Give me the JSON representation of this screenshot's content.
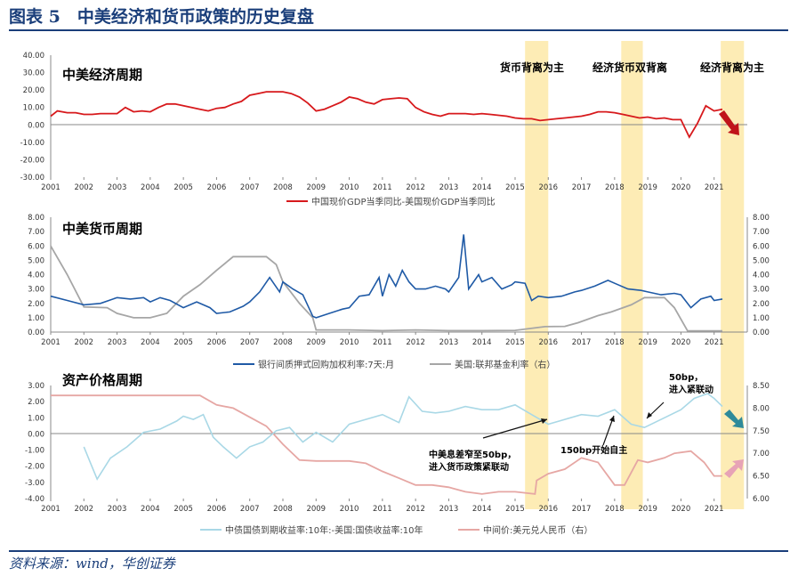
{
  "figure": {
    "title": "图表 5　中美经济和货币政策的历史复盘",
    "source": "资料来源：wind，华创证券"
  },
  "colors": {
    "red": "#d7191c",
    "blue": "#1f5aa6",
    "gray": "#a6a6a6",
    "light_blue": "#a9d8e6",
    "pink": "#e6a7a4",
    "highlight": "#fde9a8",
    "title_blue": "#1a3e7a"
  },
  "x_tick_labels": [
    "2001",
    "2002",
    "2003",
    "2004",
    "2005",
    "2006",
    "2007",
    "2008",
    "2009",
    "2010",
    "2011",
    "2012",
    "2013",
    "2014",
    "2015",
    "2016",
    "2017",
    "2018",
    "2019",
    "2020",
    "2021"
  ],
  "highlights": [
    {
      "x0": 2015.3,
      "x1": 2016.0
    },
    {
      "x0": 2018.2,
      "x1": 2018.85
    },
    {
      "x0": 2021.2,
      "x1": 2021.9
    }
  ],
  "chart_data": [
    {
      "type": "line",
      "title": "中美经济周期",
      "xlim": [
        2001,
        2022
      ],
      "ylim": [
        -30,
        40
      ],
      "yticks": [
        "40.00",
        "30.00",
        "20.00",
        "10.00",
        "0.00",
        "-10.00",
        "-20.00",
        "-30.00"
      ],
      "annotations": [
        "货币背离为主",
        "经济货币双背离",
        "经济背离为主"
      ],
      "series": [
        {
          "name": "中国现价GDP当季同比-美国现价GDP当季同比",
          "x": [
            2001.0,
            2001.2,
            2001.5,
            2001.75,
            2002.0,
            2002.25,
            2002.5,
            2002.75,
            2003.0,
            2003.25,
            2003.5,
            2003.75,
            2004.0,
            2004.25,
            2004.5,
            2004.75,
            2005.0,
            2005.25,
            2005.5,
            2005.75,
            2006.0,
            2006.25,
            2006.5,
            2006.75,
            2007.0,
            2007.25,
            2007.5,
            2007.75,
            2008.0,
            2008.25,
            2008.5,
            2008.75,
            2009.0,
            2009.25,
            2009.5,
            2009.75,
            2010.0,
            2010.25,
            2010.5,
            2010.75,
            2011.0,
            2011.25,
            2011.5,
            2011.75,
            2012.0,
            2012.25,
            2012.5,
            2012.75,
            2013.0,
            2013.25,
            2013.5,
            2013.75,
            2014.0,
            2014.25,
            2014.5,
            2014.75,
            2015.0,
            2015.25,
            2015.5,
            2015.75,
            2016.0,
            2016.25,
            2016.5,
            2016.75,
            2017.0,
            2017.25,
            2017.5,
            2017.75,
            2018.0,
            2018.25,
            2018.5,
            2018.75,
            2019.0,
            2019.25,
            2019.5,
            2019.75,
            2020.0,
            2020.25,
            2020.5,
            2020.75,
            2021.0,
            2021.25
          ],
          "values": [
            5,
            8,
            7,
            7,
            6,
            6,
            6.5,
            6.5,
            6.5,
            10,
            7.5,
            8,
            7.5,
            10,
            12,
            12,
            11,
            10,
            9,
            8,
            9.5,
            10,
            12,
            13.5,
            17,
            18,
            19,
            19,
            19,
            18,
            16,
            12.5,
            8,
            9,
            11,
            13,
            16,
            15,
            13,
            12,
            14.5,
            15,
            15.5,
            15,
            10,
            7.5,
            6,
            5,
            6.5,
            6.5,
            6.5,
            6,
            6.5,
            6,
            5.5,
            5,
            4,
            3.5,
            3.5,
            2.5,
            3,
            3.5,
            4,
            4.5,
            5,
            6,
            7.5,
            7.5,
            7,
            6,
            5,
            4,
            4.5,
            3.5,
            4,
            3,
            3,
            -7,
            1,
            11,
            8,
            9
          ]
        }
      ]
    },
    {
      "type": "line",
      "title": "中美货币周期",
      "xlim": [
        2001,
        2022
      ],
      "ylim": [
        0,
        8
      ],
      "yticks": [
        "8.00",
        "7.00",
        "6.00",
        "5.00",
        "4.00",
        "3.00",
        "2.00",
        "1.00",
        "0.00"
      ],
      "series": [
        {
          "name": "银行间质押式回购加权利率:7天:月",
          "axis": "left",
          "x": [
            2001.0,
            2001.5,
            2002.0,
            2002.5,
            2003.0,
            2003.4,
            2003.8,
            2004.0,
            2004.3,
            2004.6,
            2005.0,
            2005.4,
            2005.8,
            2006.0,
            2006.4,
            2006.8,
            2007.0,
            2007.3,
            2007.6,
            2007.9,
            2008.0,
            2008.3,
            2008.6,
            2008.9,
            2009.0,
            2009.4,
            2009.8,
            2010.0,
            2010.3,
            2010.6,
            2010.9,
            2011.0,
            2011.2,
            2011.4,
            2011.6,
            2011.8,
            2012.0,
            2012.3,
            2012.6,
            2012.9,
            2013.0,
            2013.3,
            2013.45,
            2013.6,
            2013.9,
            2014.0,
            2014.3,
            2014.6,
            2014.9,
            2015.0,
            2015.3,
            2015.5,
            2015.7,
            2016.0,
            2016.4,
            2016.8,
            2017.0,
            2017.4,
            2017.8,
            2018.0,
            2018.4,
            2018.8,
            2019.0,
            2019.4,
            2019.8,
            2020.0,
            2020.3,
            2020.6,
            2020.9,
            2021.0,
            2021.25
          ],
          "values": [
            2.5,
            2.2,
            1.9,
            2,
            2.4,
            2.3,
            2.4,
            2.1,
            2.4,
            2.2,
            1.7,
            2.1,
            1.7,
            1.3,
            1.4,
            1.8,
            2.1,
            2.8,
            3.8,
            2.8,
            3.5,
            3,
            2.6,
            1.1,
            1,
            1.3,
            1.6,
            1.7,
            2.5,
            2.6,
            3.8,
            2.5,
            4,
            3.2,
            4.3,
            3.5,
            3,
            3,
            3.2,
            3,
            2.8,
            3.8,
            6.8,
            3,
            4,
            3.5,
            3.8,
            3,
            3.3,
            3.5,
            3.4,
            2.2,
            2.5,
            2.4,
            2.5,
            2.8,
            2.9,
            3.2,
            3.6,
            3.4,
            3,
            2.9,
            2.8,
            2.6,
            2.7,
            2.6,
            1.7,
            2.3,
            2.5,
            2.2,
            2.3
          ]
        },
        {
          "name": "美国:联邦基金利率（右）",
          "axis": "right",
          "x": [
            2001.0,
            2001.5,
            2002.0,
            2002.7,
            2003.0,
            2003.5,
            2004.0,
            2004.5,
            2005.0,
            2005.5,
            2006.0,
            2006.5,
            2007.0,
            2007.5,
            2007.8,
            2008.0,
            2008.5,
            2008.9,
            2009.0,
            2010.0,
            2011.0,
            2012.0,
            2013.0,
            2014.0,
            2015.0,
            2015.9,
            2016.5,
            2016.9,
            2017.5,
            2017.9,
            2018.5,
            2018.9,
            2019.5,
            2019.8,
            2020.2,
            2021.0,
            2021.25
          ],
          "values": [
            6,
            4,
            1.75,
            1.7,
            1.3,
            1,
            1,
            1.3,
            2.5,
            3.3,
            4.3,
            5.25,
            5.25,
            5.25,
            4.7,
            3.5,
            2,
            1,
            0.15,
            0.15,
            0.1,
            0.15,
            0.1,
            0.1,
            0.12,
            0.38,
            0.4,
            0.65,
            1.15,
            1.4,
            1.9,
            2.4,
            2.4,
            1.7,
            0.08,
            0.08,
            0.08
          ]
        }
      ]
    },
    {
      "type": "line",
      "title": "资产价格周期",
      "xlim": [
        2001,
        2022
      ],
      "ylim": [
        -4,
        3
      ],
      "yticks": [
        "3.00",
        "2.00",
        "1.00",
        "0.00",
        "-1.00",
        "-2.00",
        "-3.00",
        "-4.00"
      ],
      "y2ticks": [
        "8.50",
        "8.00",
        "7.50",
        "7.00",
        "6.50",
        "6.00"
      ],
      "annotations": [
        "50bp，进入紧联动",
        "中美息差窄至50bp，进入货币政策紧联动",
        "150bp开始自主"
      ],
      "series": [
        {
          "name": "中债国债到期收益率:10年:-美国:国债收益率:10年",
          "axis": "left",
          "x": [
            2002.0,
            2002.2,
            2002.4,
            2002.8,
            2003.3,
            2003.8,
            2004.3,
            2004.8,
            2005.0,
            2005.3,
            2005.6,
            2005.9,
            2006.2,
            2006.6,
            2007.0,
            2007.4,
            2007.8,
            2008.2,
            2008.6,
            2009.0,
            2009.5,
            2010.0,
            2010.5,
            2011.0,
            2011.5,
            2011.8,
            2012.2,
            2012.6,
            2013.0,
            2013.5,
            2014.0,
            2014.5,
            2015.0,
            2015.5,
            2016.0,
            2016.5,
            2017.0,
            2017.5,
            2018.0,
            2018.5,
            2018.9,
            2019.5,
            2020.0,
            2020.4,
            2020.8,
            2021.0,
            2021.25
          ],
          "values": [
            -0.8,
            -1.8,
            -2.8,
            -1.5,
            -0.8,
            0.1,
            0.3,
            0.8,
            1.1,
            0.9,
            1.2,
            -0.2,
            -0.8,
            -1.5,
            -0.8,
            -0.5,
            0.2,
            0.4,
            -0.5,
            0.1,
            -0.5,
            0.6,
            0.9,
            1.2,
            0.7,
            2.3,
            1.4,
            1.3,
            1.4,
            1.7,
            1.5,
            1.5,
            1.8,
            1.2,
            0.6,
            0.9,
            1.2,
            1.1,
            1.5,
            0.6,
            0.4,
            1,
            1.5,
            2.2,
            2.5,
            2.2,
            1.7
          ]
        },
        {
          "name": "中间价:美元兑人民币（右）",
          "axis": "right",
          "x": [
            2001.0,
            2005.5,
            2006.0,
            2006.5,
            2007.0,
            2007.5,
            2008.0,
            2008.5,
            2009.0,
            2010.0,
            2010.5,
            2011.0,
            2011.5,
            2012.0,
            2012.5,
            2013.0,
            2013.5,
            2014.0,
            2014.5,
            2015.0,
            2015.6,
            2015.65,
            2016.0,
            2016.5,
            2017.0,
            2017.5,
            2018.0,
            2018.3,
            2018.7,
            2019.0,
            2019.5,
            2019.8,
            2020.3,
            2020.7,
            2021.0,
            2021.25
          ],
          "values": [
            8.28,
            8.28,
            8.07,
            8.0,
            7.8,
            7.6,
            7.2,
            6.85,
            6.83,
            6.83,
            6.78,
            6.6,
            6.45,
            6.3,
            6.3,
            6.25,
            6.15,
            6.1,
            6.15,
            6.15,
            6.1,
            6.4,
            6.55,
            6.65,
            6.9,
            6.8,
            6.3,
            6.3,
            6.85,
            6.8,
            6.9,
            7.0,
            7.05,
            6.8,
            6.5,
            6.5
          ]
        }
      ]
    }
  ]
}
